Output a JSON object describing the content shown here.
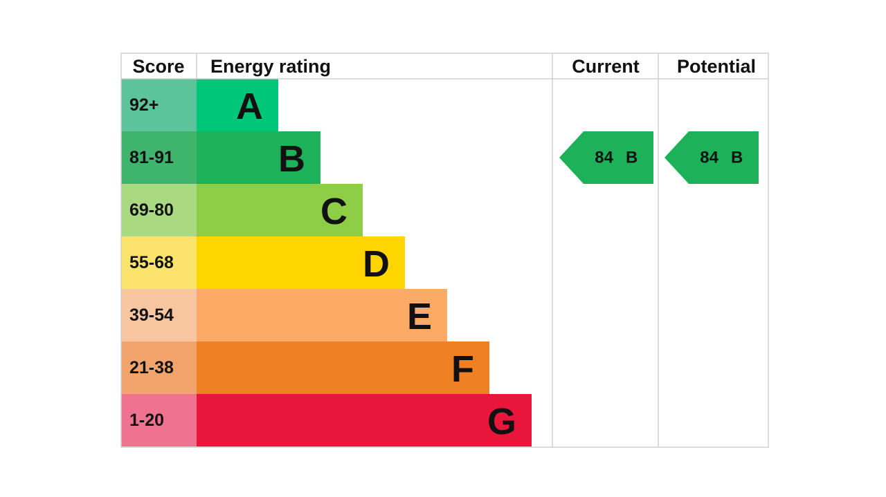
{
  "header": {
    "score": "Score",
    "energy_rating": "Energy rating",
    "current": "Current",
    "potential": "Potential"
  },
  "bands": [
    {
      "score": "92+",
      "letter": "A",
      "color": "#00c67a",
      "score_color": "#5cc39a"
    },
    {
      "score": "81-91",
      "letter": "B",
      "color": "#1db25a",
      "score_color": "#3fb46c"
    },
    {
      "score": "69-80",
      "letter": "C",
      "color": "#8dce46",
      "score_color": "#a9da82"
    },
    {
      "score": "55-68",
      "letter": "D",
      "color": "#ffd500",
      "score_color": "#fce36c"
    },
    {
      "score": "39-54",
      "letter": "E",
      "color": "#fcaa65",
      "score_color": "#f9c6a2"
    },
    {
      "score": "21-38",
      "letter": "F",
      "color": "#ef8023",
      "score_color": "#f3a46c"
    },
    {
      "score": "1-20",
      "letter": "G",
      "color": "#e9153b",
      "score_color": "#ef7391"
    }
  ],
  "current": {
    "value": 84,
    "letter": "B"
  },
  "potential": {
    "value": 84,
    "letter": "B"
  }
}
